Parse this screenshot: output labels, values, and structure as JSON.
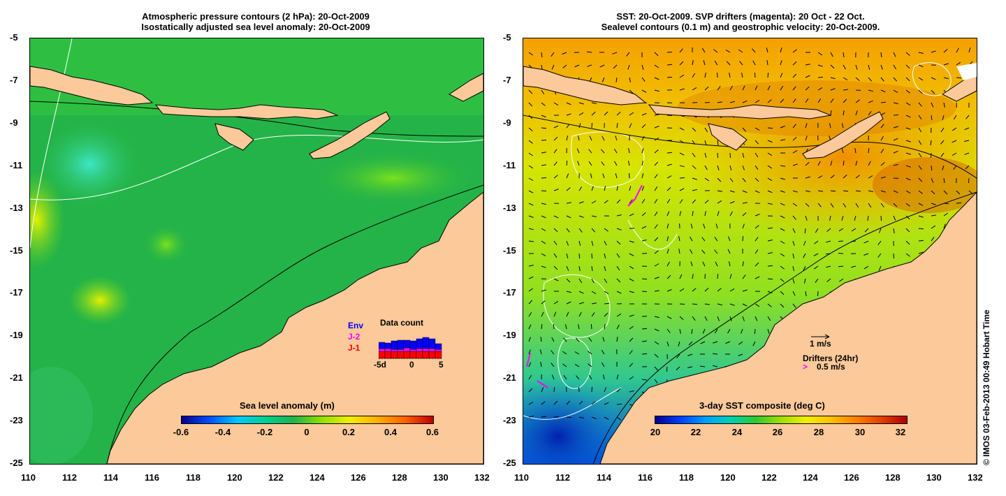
{
  "left_panel": {
    "title_line1": "Atmospheric pressure contours (2 hPa): 20-Oct-2009",
    "title_line2": "Isostatically adjusted sea level anomaly: 20-Oct-2009",
    "colorbar_title": "Sea level anomaly (m)",
    "colorbar_ticks": [
      "-0.6",
      "-0.4",
      "-0.2",
      "0",
      "0.2",
      "0.4",
      "0.6"
    ],
    "data_count": {
      "title": "Data count",
      "legend": [
        "Env",
        "J-2",
        "J-1"
      ],
      "axis_ticks": [
        "-5d",
        "0",
        "5"
      ],
      "colors": {
        "env": "#0000ff",
        "j2": "#ff00ff",
        "j1": "#ff0000"
      }
    }
  },
  "right_panel": {
    "title_line1": "SST: 20-Oct-2009. SVP drifters (magenta): 20 Oct - 22 Oct.",
    "title_line2": "Sealevel contours (0.1 m) and geostrophic velocity: 20-Oct-2009.",
    "colorbar_title": "3-day SST composite (deg C)",
    "colorbar_ticks": [
      "20",
      "22",
      "24",
      "26",
      "28",
      "30",
      "32"
    ],
    "velocity_key": "1 m/s",
    "drifter_key_title": "Drifters (24hr)",
    "drifter_key_value": "0.5 m/s"
  },
  "lat_ticks": [
    "-5",
    "-7",
    "-9",
    "-11",
    "-13",
    "-15",
    "-17",
    "-19",
    "-21",
    "-23",
    "-25"
  ],
  "lon_ticks": [
    "110",
    "112",
    "114",
    "116",
    "118",
    "120",
    "122",
    "124",
    "126",
    "128",
    "130",
    "132"
  ],
  "credit": "© IMOS 03-Feb-2013 00:49 Hobart Time",
  "colors": {
    "land": "#fbc99a",
    "ssh_ocean": "#22b14c",
    "sst_warm": "#f5a000",
    "sst_mid": "#c8e600"
  }
}
